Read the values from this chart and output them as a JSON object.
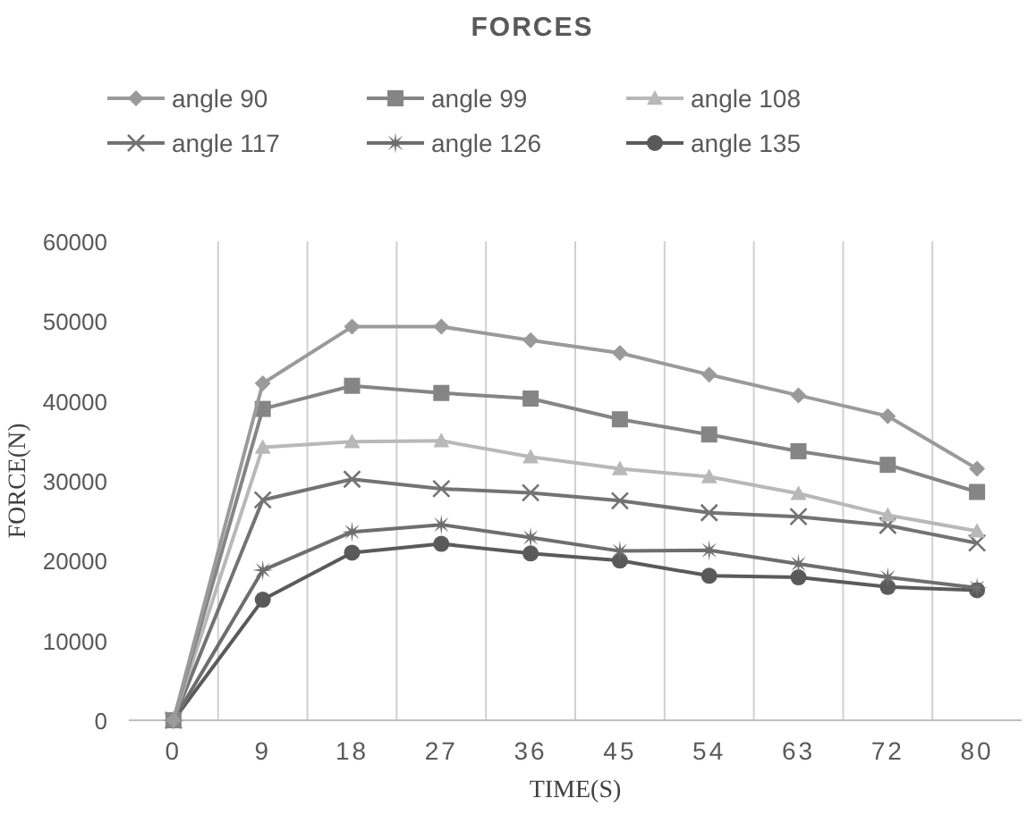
{
  "chart_data": {
    "type": "line",
    "title": "FORCES",
    "xlabel": "TIME(S)",
    "ylabel": "FORCE(N)",
    "categories": [
      "0",
      "9",
      "18",
      "27",
      "36",
      "45",
      "54",
      "63",
      "72",
      "80"
    ],
    "series": [
      {
        "name": "angle 90",
        "color": "#9a9a9a",
        "marker": "diamond",
        "values": [
          0,
          42200,
          49300,
          49300,
          47600,
          46000,
          43300,
          40700,
          38100,
          31500
        ]
      },
      {
        "name": "angle 99",
        "color": "#858585",
        "marker": "square",
        "values": [
          0,
          39000,
          41900,
          41000,
          40300,
          37700,
          35800,
          33700,
          32000,
          28600
        ]
      },
      {
        "name": "angle 108",
        "color": "#b8b8b8",
        "marker": "triangle",
        "values": [
          0,
          34200,
          34900,
          35000,
          33000,
          31500,
          30500,
          28400,
          25700,
          23700
        ]
      },
      {
        "name": "angle 117",
        "color": "#737373",
        "marker": "cross",
        "values": [
          0,
          27600,
          30200,
          29000,
          28500,
          27500,
          26000,
          25500,
          24400,
          22200
        ]
      },
      {
        "name": "angle 126",
        "color": "#6e6e6e",
        "marker": "star",
        "values": [
          0,
          18800,
          23600,
          24500,
          22900,
          21200,
          21300,
          19600,
          17900,
          16600
        ]
      },
      {
        "name": "angle 135",
        "color": "#5a5a5a",
        "marker": "circle",
        "values": [
          0,
          15100,
          21000,
          22100,
          20900,
          20000,
          18100,
          17900,
          16700,
          16300
        ]
      }
    ],
    "ylim": [
      0,
      60000
    ],
    "yticks": [
      0,
      10000,
      20000,
      30000,
      40000,
      50000,
      60000
    ],
    "grid": "x",
    "legend": "top",
    "line_style": "solid"
  }
}
